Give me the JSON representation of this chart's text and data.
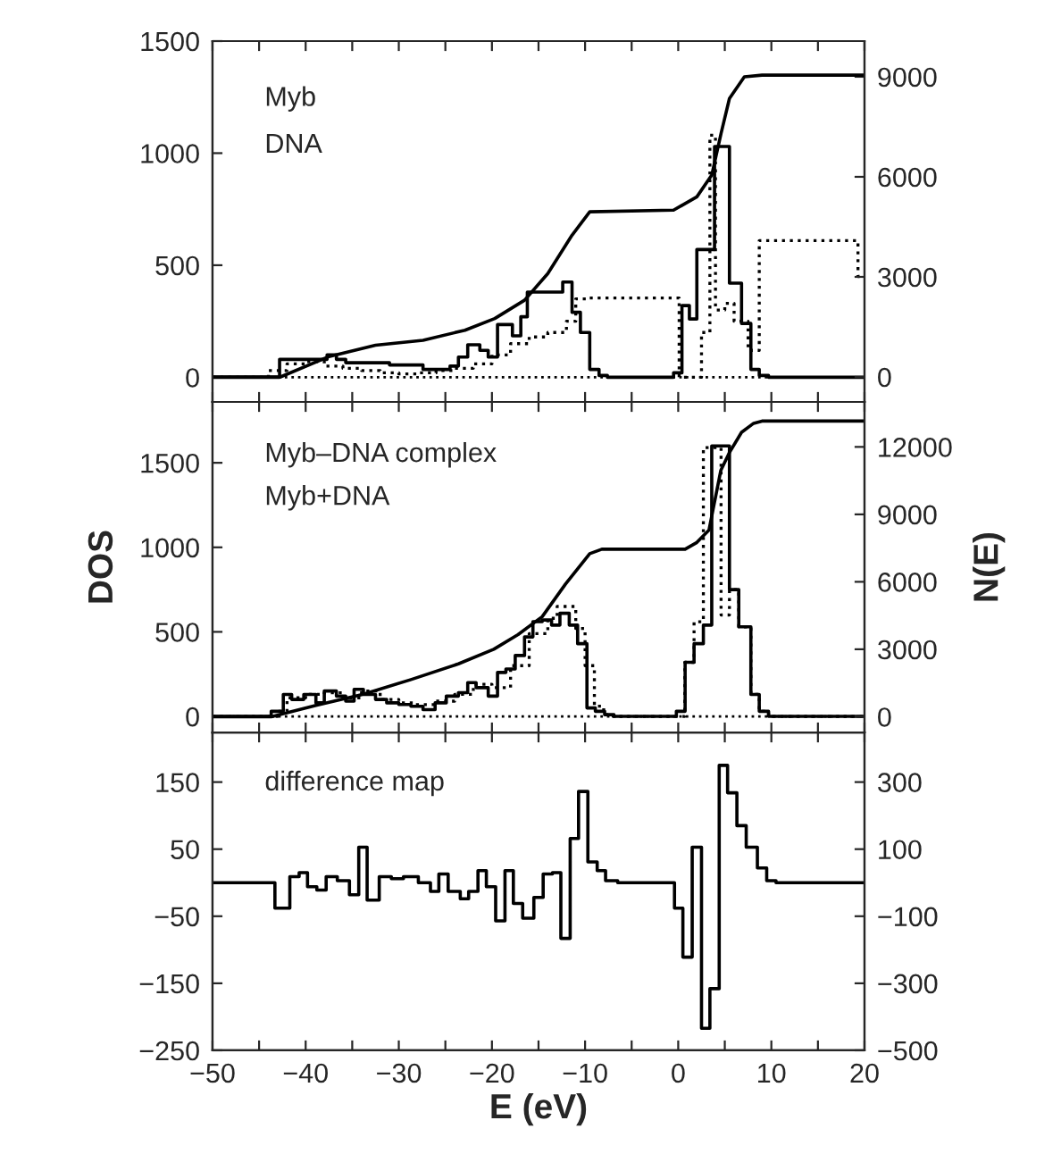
{
  "chart_data": [
    {
      "type": "step",
      "annotations": [
        "Myb",
        "DNA"
      ],
      "xlim": [
        -50,
        20
      ],
      "xticks": [
        -50,
        {
          "value": -45,
          "label": null
        },
        -40,
        {
          "value": -35,
          "label": null
        },
        -30,
        {
          "value": -25,
          "label": null
        },
        -20,
        {
          "value": -15,
          "label": null
        },
        -10,
        {
          "value": -5,
          "label": null
        },
        0,
        {
          "value": 5,
          "label": null
        },
        10,
        {
          "value": 15,
          "label": null
        },
        20
      ],
      "ylim": [
        -110,
        1500
      ],
      "yticks": [
        0,
        500,
        1000,
        1500
      ],
      "y2lim": [
        -750,
        10070
      ],
      "y2ticks": [
        0,
        3000,
        6000,
        9000
      ],
      "tick_labels": "y",
      "legend": false,
      "grid": false,
      "ref_lines": [
        {
          "axis": "y",
          "value": 0,
          "line_style": "dotted",
          "color": "#000000"
        }
      ],
      "series": [
        {
          "color": "#000000",
          "line_style": "solid",
          "x": [
            -50,
            -42.8,
            -37.7,
            -36.7,
            -35.7,
            -31,
            -27.4,
            -24.5,
            -23.6,
            -22.6,
            -21.3,
            -20.4,
            -19.4,
            -17.8,
            -16.9,
            -16.2,
            -13.5,
            -12.4,
            -11.4,
            -10.5,
            -9.5,
            -8.5,
            -7.6,
            -0.5,
            0.4,
            1.2,
            2.0,
            3.9,
            5.5,
            6.8,
            7.8,
            8.7,
            9.7,
            20
          ],
          "values": [
            0,
            80,
            100,
            80,
            65,
            55,
            35,
            50,
            90,
            145,
            120,
            90,
            235,
            185,
            270,
            380,
            380,
            425,
            290,
            200,
            35,
            8,
            0,
            20,
            320,
            260,
            570,
            1030,
            420,
            240,
            35,
            8,
            0,
            0
          ]
        },
        {
          "color": "#000000",
          "line_style": "dotted",
          "x": [
            -50,
            -44,
            -42,
            -40,
            -38,
            -36,
            -34,
            -32,
            -30,
            -28,
            -26,
            -24,
            -22,
            -20,
            -18,
            -16,
            -14,
            -12,
            -11,
            -9.9,
            0.1,
            2.5,
            3.4,
            4.0,
            5.0,
            6.0,
            7.5,
            8.7,
            19.3,
            20
          ],
          "values": [
            0,
            30,
            60,
            70,
            50,
            40,
            30,
            20,
            15,
            20,
            30,
            40,
            60,
            100,
            150,
            180,
            200,
            250,
            350,
            354,
            0,
            200,
            1080,
            300,
            330,
            250,
            120,
            610,
            450,
            450
          ]
        },
        {
          "type": "line",
          "axis": "y2",
          "color": "#000000",
          "line_style": "solid",
          "x": [
            -50,
            -42.7,
            -37.6,
            -32.5,
            -27.4,
            -22.9,
            -19.7,
            -16.5,
            -14.0,
            -11.4,
            -9.5,
            -0.5,
            2.0,
            3.6,
            4.6,
            5.5,
            7.1,
            9.0,
            20
          ],
          "values": [
            0,
            0,
            600,
            950,
            1100,
            1400,
            1750,
            2300,
            3100,
            4250,
            4950,
            5000,
            5400,
            6050,
            7300,
            8350,
            9000,
            9050,
            9050
          ]
        }
      ]
    },
    {
      "type": "step",
      "ylabel": "DOS",
      "y2label": "N(E)",
      "annotations": [
        "Myb–DNA complex",
        "Myb+DNA"
      ],
      "xlim": [
        -50,
        20
      ],
      "xticks": [
        -50,
        {
          "value": -45,
          "label": null
        },
        -40,
        {
          "value": -35,
          "label": null
        },
        -30,
        {
          "value": -25,
          "label": null
        },
        -20,
        {
          "value": -15,
          "label": null
        },
        -10,
        {
          "value": -5,
          "label": null
        },
        0,
        {
          "value": 5,
          "label": null
        },
        10,
        {
          "value": 15,
          "label": null
        },
        20
      ],
      "ylim": [
        -95,
        1860
      ],
      "yticks": [
        0,
        500,
        1000,
        1500
      ],
      "y2lim": [
        -700,
        14000
      ],
      "y2ticks": [
        0,
        3000,
        6000,
        9000,
        12000
      ],
      "tick_labels": "y",
      "legend": false,
      "grid": false,
      "ref_lines": [
        {
          "axis": "y",
          "value": 0,
          "line_style": "dotted",
          "color": "#000000"
        }
      ],
      "series": [
        {
          "color": "#000000",
          "line_style": "solid",
          "x": [
            -50,
            -43.7,
            -42.4,
            -41.5,
            -40.2,
            -38.9,
            -38.0,
            -36.7,
            -35.7,
            -34.8,
            -33.8,
            -32.5,
            -31.3,
            -30.0,
            -28.7,
            -27.4,
            -26.1,
            -24.9,
            -23.6,
            -22.6,
            -21.7,
            -20.4,
            -19.4,
            -18.5,
            -17.5,
            -16.5,
            -15.6,
            -14.6,
            -13.6,
            -12.7,
            -11.7,
            -10.8,
            -9.8,
            -8.9,
            -7.9,
            -6.9,
            -0.2,
            0.74,
            1.7,
            2.7,
            3.6,
            5.5,
            6.5,
            7.8,
            8.7,
            9.7,
            20
          ],
          "values": [
            0,
            30,
            130,
            100,
            130,
            80,
            150,
            120,
            90,
            160,
            130,
            100,
            80,
            70,
            60,
            40,
            80,
            120,
            140,
            200,
            170,
            120,
            260,
            280,
            360,
            470,
            560,
            570,
            540,
            610,
            540,
            430,
            50,
            30,
            10,
            0,
            30,
            320,
            430,
            540,
            1600,
            750,
            530,
            130,
            30,
            0,
            0
          ]
        },
        {
          "color": "#000000",
          "line_style": "dotted",
          "x": [
            -50,
            -44,
            -43,
            -42,
            -40,
            -38,
            -36,
            -34,
            -32,
            -30,
            -28,
            -26,
            -24,
            -22,
            -20,
            -18,
            -16,
            -14,
            -13,
            -11,
            -10,
            -9,
            -8,
            -7,
            0,
            0.7,
            1.7,
            2.7,
            4.6,
            5.5,
            6.5,
            7.8,
            8.7,
            9.7,
            20
          ],
          "values": [
            0,
            0,
            30,
            110,
            130,
            140,
            110,
            150,
            100,
            80,
            70,
            90,
            130,
            190,
            170,
            300,
            490,
            580,
            650,
            520,
            300,
            60,
            10,
            0,
            0,
            320,
            560,
            1590,
            600,
            750,
            530,
            130,
            30,
            0,
            0
          ]
        },
        {
          "type": "line",
          "axis": "y2",
          "color": "#000000",
          "line_style": "solid",
          "x": [
            -50,
            -43.7,
            -38.9,
            -33.8,
            -28.7,
            -23.6,
            -19.8,
            -17.2,
            -14.6,
            -12.1,
            -9.5,
            -8.2,
            0.74,
            2.0,
            3.3,
            4.57,
            5.5,
            6.8,
            8.1,
            9.0,
            20
          ],
          "values": [
            0,
            0,
            500,
            1000,
            1650,
            2350,
            3000,
            3650,
            4450,
            5900,
            7250,
            7450,
            7450,
            7750,
            8300,
            10950,
            11750,
            12650,
            13050,
            13150,
            13150
          ]
        }
      ]
    },
    {
      "type": "step",
      "xlabel": "E (eV)",
      "annotations": [
        "difference map"
      ],
      "xlim": [
        -50,
        20
      ],
      "xticks": [
        {
          "value": -50,
          "label": "−50"
        },
        {
          "value": -45,
          "label": null
        },
        {
          "value": -40,
          "label": "−40"
        },
        {
          "value": -35,
          "label": null
        },
        {
          "value": -30,
          "label": "−30"
        },
        {
          "value": -25,
          "label": null
        },
        {
          "value": -20,
          "label": "−20"
        },
        {
          "value": -15,
          "label": null
        },
        {
          "value": -10,
          "label": "−10"
        },
        {
          "value": -5,
          "label": null
        },
        0,
        {
          "value": 5,
          "label": null
        },
        10,
        {
          "value": 15,
          "label": null
        },
        20
      ],
      "ylim": [
        -250,
        224
      ],
      "yticks": [
        {
          "value": -250,
          "label": "−250"
        },
        {
          "value": -150,
          "label": "−150"
        },
        {
          "value": -50,
          "label": "−50"
        },
        50,
        150
      ],
      "y2lim": [
        -500,
        448
      ],
      "y2ticks": [
        {
          "value": -500,
          "label": "−500"
        },
        {
          "value": -300,
          "label": "−300"
        },
        {
          "value": -100,
          "label": "−100"
        },
        100,
        300
      ],
      "legend": false,
      "grid": false,
      "series": [
        {
          "color": "#000000",
          "line_style": "solid",
          "x": [
            -50,
            -43.3,
            -41.7,
            -40.7,
            -39.8,
            -38.8,
            -37.8,
            -36.6,
            -35.3,
            -34.3,
            -33.4,
            -32.1,
            -30.8,
            -29.5,
            -27.9,
            -26.6,
            -25.7,
            -24.7,
            -23.4,
            -22.5,
            -21.5,
            -20.6,
            -19.6,
            -18.6,
            -17.7,
            -16.7,
            -15.5,
            -14.5,
            -13.5,
            -12.6,
            -11.6,
            -10.7,
            -9.7,
            -8.7,
            -7.8,
            -6.5,
            -0.4,
            0.5,
            1.5,
            2.5,
            3.4,
            4.4,
            5.3,
            6.3,
            7.3,
            8.5,
            9.5,
            10.5,
            20
          ],
          "values": [
            0,
            -38,
            9,
            15,
            -6,
            -11,
            9,
            3,
            -18,
            53,
            -26,
            9,
            6,
            9,
            0,
            -13,
            13,
            -13,
            -24,
            -13,
            18,
            -6,
            -57,
            18,
            -31,
            -53,
            -22,
            13,
            15,
            -83,
            66,
            136,
            31,
            18,
            3,
            0,
            -38,
            -111,
            53,
            -217,
            -158,
            175,
            134,
            85,
            53,
            22,
            3,
            0,
            0
          ]
        }
      ]
    }
  ]
}
